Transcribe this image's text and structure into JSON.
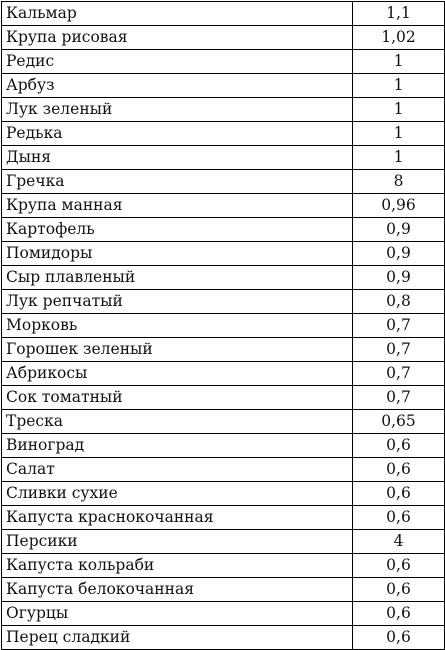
{
  "rows": [
    {
      "name": "Кальмар",
      "value": "1,1"
    },
    {
      "name": "Крупа рисовая",
      "value": "1,02"
    },
    {
      "name": "Редис",
      "value": "1"
    },
    {
      "name": "Арбуз",
      "value": "1"
    },
    {
      "name": "Лук зеленый",
      "value": "1"
    },
    {
      "name": "Редька",
      "value": "1"
    },
    {
      "name": "Дыня",
      "value": "1"
    },
    {
      "name": "Гречка",
      "value": "8"
    },
    {
      "name": "Крупа манная",
      "value": "0,96"
    },
    {
      "name": "Картофель",
      "value": "0,9"
    },
    {
      "name": "Помидоры",
      "value": "0,9"
    },
    {
      "name": "Сыр плавленый",
      "value": "0,9"
    },
    {
      "name": "Лук репчатый",
      "value": "0,8"
    },
    {
      "name": "Морковь",
      "value": "0,7"
    },
    {
      "name": "Горошек зеленый",
      "value": "0,7"
    },
    {
      "name": "Абрикосы",
      "value": "0,7"
    },
    {
      "name": "Сок томатный",
      "value": "0,7"
    },
    {
      "name": "Треска",
      "value": "0,65"
    },
    {
      "name": "Виноград",
      "value": "0,6"
    },
    {
      "name": "Салат",
      "value": "0,6"
    },
    {
      "name": "Сливки сухие",
      "value": "0,6"
    },
    {
      "name": "Капуста краснокочанная",
      "value": "0,6"
    },
    {
      "name": "Персики",
      "value": "4"
    },
    {
      "name": "Капуста кольраби",
      "value": "0,6"
    },
    {
      "name": "Капуста белокочанная",
      "value": "0,6"
    },
    {
      "name": "Огурцы",
      "value": "0,6"
    },
    {
      "name": "Перец сладкий",
      "value": "0,6"
    }
  ]
}
